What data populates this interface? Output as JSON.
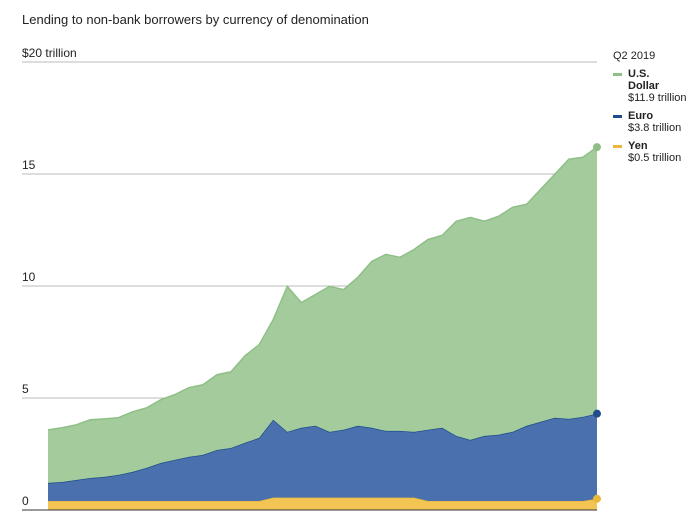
{
  "chart_data": {
    "type": "stacked_area",
    "subtitle": "Lending to non-bank borrowers by currency of denomination",
    "legend_title": "Q2 2019",
    "ylim": [
      0,
      20
    ],
    "yticks": [
      0,
      5,
      10,
      15,
      {
        "value": 20,
        "label": "$20 trillion"
      }
    ],
    "grid": true,
    "series": [
      {
        "name": "U.S. Dollar",
        "color": "#a3cb9c",
        "line_color": "#8fbf87",
        "legend_value": "$11.9 trillion",
        "values": [
          2.37,
          2.42,
          2.46,
          2.6,
          2.59,
          2.55,
          2.68,
          2.68,
          2.82,
          2.91,
          3.09,
          3.13,
          3.36,
          3.4,
          3.89,
          4.16,
          4.47,
          6.49,
          5.59,
          5.86,
          6.49,
          6.26,
          6.62,
          7.43,
          7.88,
          7.75,
          8.14,
          8.5,
          8.59,
          9.58,
          9.93,
          9.58,
          9.75,
          10.02,
          9.89,
          10.38,
          10.87,
          11.59,
          11.59,
          11.9
        ]
      },
      {
        "name": "Euro",
        "color": "#4a70ae",
        "line_color": "#1f4d8c",
        "legend_value": "$3.8 trillion",
        "values": [
          0.81,
          0.85,
          0.94,
          1.03,
          1.08,
          1.17,
          1.3,
          1.48,
          1.7,
          1.84,
          1.97,
          2.06,
          2.28,
          2.37,
          2.6,
          2.82,
          3.48,
          2.94,
          3.12,
          3.21,
          2.94,
          3.03,
          3.21,
          3.12,
          2.98,
          2.98,
          2.94,
          3.18,
          3.27,
          2.91,
          2.73,
          2.91,
          2.96,
          3.09,
          3.36,
          3.54,
          3.72,
          3.67,
          3.76,
          3.8
        ]
      },
      {
        "name": "Yen",
        "color": "#f2c453",
        "line_color": "#eab93c",
        "legend_value": "$0.5 trillion",
        "values": [
          0.4,
          0.4,
          0.4,
          0.4,
          0.4,
          0.4,
          0.4,
          0.4,
          0.4,
          0.4,
          0.4,
          0.4,
          0.4,
          0.4,
          0.4,
          0.4,
          0.55,
          0.55,
          0.55,
          0.55,
          0.55,
          0.55,
          0.55,
          0.55,
          0.55,
          0.55,
          0.55,
          0.4,
          0.4,
          0.4,
          0.4,
          0.4,
          0.4,
          0.4,
          0.4,
          0.4,
          0.4,
          0.4,
          0.4,
          0.5
        ]
      }
    ]
  }
}
